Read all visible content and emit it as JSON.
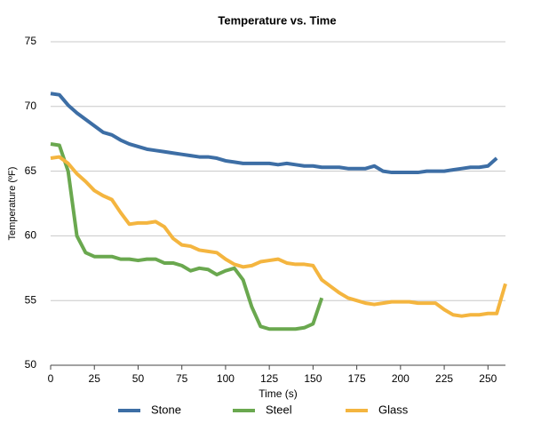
{
  "chart_data": {
    "type": "line",
    "title": "Temperature vs. Time",
    "x_label": "Time (s)",
    "y_label": "Temperature (ºF)",
    "x": [
      0,
      5,
      10,
      15,
      20,
      25,
      30,
      35,
      40,
      45,
      50,
      55,
      60,
      65,
      70,
      75,
      80,
      85,
      90,
      95,
      100,
      105,
      110,
      115,
      120,
      125,
      130,
      135,
      140,
      145,
      150,
      155,
      160,
      165,
      170,
      175,
      180,
      185,
      190,
      195,
      200,
      205,
      210,
      215,
      220,
      225,
      230,
      235,
      240,
      245,
      250,
      255,
      260
    ],
    "xlim": [
      0,
      260
    ],
    "xticks": [
      0,
      25,
      50,
      75,
      100,
      125,
      150,
      175,
      200,
      225,
      250
    ],
    "ylim": [
      50,
      75
    ],
    "yticks": [
      50,
      55,
      60,
      65,
      70,
      75
    ],
    "grid": true,
    "legend": "bottom",
    "series": [
      {
        "name": "Stone",
        "color": "#3d6ea5",
        "values": [
          71.0,
          70.9,
          70.1,
          69.5,
          69.0,
          68.5,
          68.0,
          67.8,
          67.4,
          67.1,
          66.9,
          66.7,
          66.6,
          66.5,
          66.4,
          66.3,
          66.2,
          66.1,
          66.1,
          66.0,
          65.8,
          65.7,
          65.6,
          65.6,
          65.6,
          65.6,
          65.5,
          65.6,
          65.5,
          65.4,
          65.4,
          65.3,
          65.3,
          65.3,
          65.2,
          65.2,
          65.2,
          65.4,
          65.0,
          64.9,
          64.9,
          64.9,
          64.9,
          65.0,
          65.0,
          65.0,
          65.1,
          65.2,
          65.3,
          65.3,
          65.4,
          66.0,
          null
        ]
      },
      {
        "name": "Steel",
        "color": "#6aa84f",
        "values": [
          67.1,
          67.0,
          65.0,
          60.0,
          58.7,
          58.4,
          58.4,
          58.4,
          58.2,
          58.2,
          58.1,
          58.2,
          58.2,
          57.9,
          57.9,
          57.7,
          57.3,
          57.5,
          57.4,
          57.0,
          57.3,
          57.5,
          56.6,
          54.5,
          53.0,
          52.8,
          52.8,
          52.8,
          52.8,
          52.9,
          53.2,
          55.2,
          null,
          null,
          null,
          null,
          null,
          null,
          null,
          null,
          null,
          null,
          null,
          null,
          null,
          null,
          null,
          null,
          null,
          null,
          null,
          null,
          null
        ]
      },
      {
        "name": "Glass",
        "color": "#f4b53f",
        "values": [
          66.0,
          66.1,
          65.6,
          64.8,
          64.2,
          63.5,
          63.1,
          62.8,
          61.8,
          60.9,
          61.0,
          61.0,
          61.1,
          60.7,
          59.8,
          59.3,
          59.2,
          58.9,
          58.8,
          58.7,
          58.2,
          57.8,
          57.6,
          57.7,
          58.0,
          58.1,
          58.2,
          57.9,
          57.8,
          57.8,
          57.7,
          56.6,
          56.1,
          55.6,
          55.2,
          55.0,
          54.8,
          54.7,
          54.8,
          54.9,
          54.9,
          54.9,
          54.8,
          54.8,
          54.8,
          54.3,
          53.9,
          53.8,
          53.9,
          53.9,
          54.0,
          54.0,
          56.3
        ]
      }
    ]
  }
}
